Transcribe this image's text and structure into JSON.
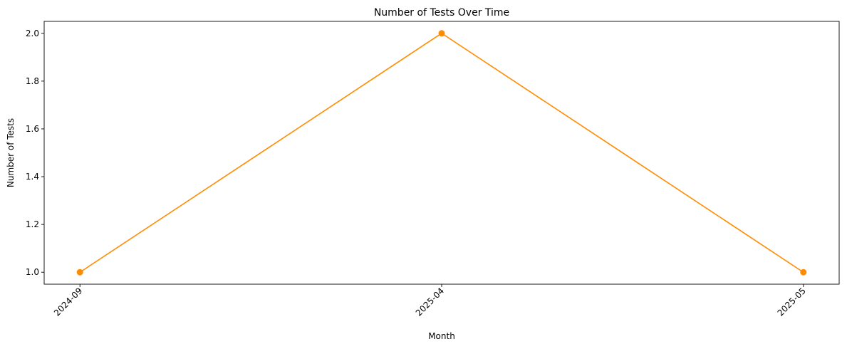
{
  "chart_data": {
    "type": "line",
    "title": "Number of Tests Over Time",
    "xlabel": "Month",
    "ylabel": "Number of Tests",
    "categories": [
      "2024-09",
      "2025-04",
      "2025-05"
    ],
    "series": [
      {
        "values": [
          1,
          2,
          1
        ],
        "color": "#ff8c00",
        "marker": "circle"
      }
    ],
    "ylim": [
      0.95,
      2.05
    ],
    "yticks": [
      1.0,
      1.2,
      1.4,
      1.6,
      1.8,
      2.0
    ],
    "ytick_labels": [
      "1.0",
      "1.2",
      "1.4",
      "1.6",
      "1.8",
      "2.0"
    ],
    "xtick_rotation": 45,
    "grid": false,
    "legend": "none"
  }
}
